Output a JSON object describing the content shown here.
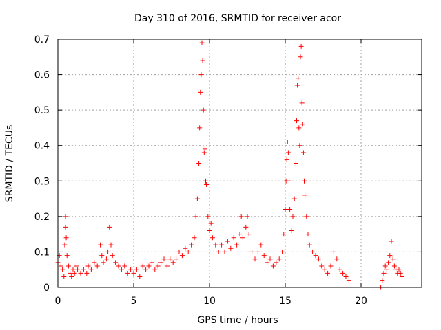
{
  "chart_data": {
    "type": "scatter",
    "title": "Day 310 of 2016, SRMTID for receiver acor",
    "xlabel": "GPS time / hours",
    "ylabel": "SRMTID / TECUs",
    "xlim": [
      0,
      24
    ],
    "ylim": [
      0,
      0.7
    ],
    "x_ticks": [
      "0",
      "5",
      "10",
      "15",
      "20"
    ],
    "y_ticks": [
      "0",
      "0.1",
      "0.2",
      "0.3",
      "0.4",
      "0.5",
      "0.6",
      "0.7"
    ],
    "grid": true,
    "marker": "plus",
    "color": "#ff0000",
    "series": [
      {
        "name": "SRMTID",
        "points": [
          [
            0.0,
            0.07
          ],
          [
            0.1,
            0.09
          ],
          [
            0.2,
            0.06
          ],
          [
            0.3,
            0.05
          ],
          [
            0.4,
            0.03
          ],
          [
            0.45,
            0.12
          ],
          [
            0.5,
            0.17
          ],
          [
            0.5,
            0.2
          ],
          [
            0.55,
            0.14
          ],
          [
            0.6,
            0.09
          ],
          [
            0.7,
            0.06
          ],
          [
            0.8,
            0.04
          ],
          [
            0.9,
            0.03
          ],
          [
            1.0,
            0.05
          ],
          [
            1.1,
            0.04
          ],
          [
            1.2,
            0.06
          ],
          [
            1.3,
            0.05
          ],
          [
            1.5,
            0.04
          ],
          [
            1.7,
            0.05
          ],
          [
            1.9,
            0.04
          ],
          [
            2.0,
            0.06
          ],
          [
            2.2,
            0.05
          ],
          [
            2.4,
            0.07
          ],
          [
            2.6,
            0.06
          ],
          [
            2.8,
            0.12
          ],
          [
            2.9,
            0.09
          ],
          [
            3.0,
            0.07
          ],
          [
            3.2,
            0.08
          ],
          [
            3.3,
            0.1
          ],
          [
            3.4,
            0.17
          ],
          [
            3.5,
            0.12
          ],
          [
            3.6,
            0.09
          ],
          [
            3.8,
            0.07
          ],
          [
            4.0,
            0.06
          ],
          [
            4.2,
            0.05
          ],
          [
            4.4,
            0.06
          ],
          [
            4.6,
            0.04
          ],
          [
            4.8,
            0.05
          ],
          [
            5.0,
            0.04
          ],
          [
            5.2,
            0.05
          ],
          [
            5.4,
            0.03
          ],
          [
            5.6,
            0.06
          ],
          [
            5.8,
            0.05
          ],
          [
            6.0,
            0.06
          ],
          [
            6.2,
            0.07
          ],
          [
            6.4,
            0.05
          ],
          [
            6.6,
            0.06
          ],
          [
            6.8,
            0.07
          ],
          [
            7.0,
            0.08
          ],
          [
            7.2,
            0.06
          ],
          [
            7.4,
            0.08
          ],
          [
            7.6,
            0.07
          ],
          [
            7.8,
            0.08
          ],
          [
            8.0,
            0.1
          ],
          [
            8.2,
            0.09
          ],
          [
            8.4,
            0.11
          ],
          [
            8.6,
            0.1
          ],
          [
            8.8,
            0.12
          ],
          [
            9.0,
            0.14
          ],
          [
            9.1,
            0.2
          ],
          [
            9.2,
            0.25
          ],
          [
            9.3,
            0.35
          ],
          [
            9.35,
            0.45
          ],
          [
            9.4,
            0.55
          ],
          [
            9.45,
            0.6
          ],
          [
            9.5,
            0.69
          ],
          [
            9.55,
            0.64
          ],
          [
            9.6,
            0.5
          ],
          [
            9.65,
            0.38
          ],
          [
            9.7,
            0.39
          ],
          [
            9.75,
            0.3
          ],
          [
            9.8,
            0.29
          ],
          [
            9.9,
            0.2
          ],
          [
            10.0,
            0.16
          ],
          [
            10.1,
            0.18
          ],
          [
            10.2,
            0.14
          ],
          [
            10.4,
            0.12
          ],
          [
            10.6,
            0.1
          ],
          [
            10.8,
            0.12
          ],
          [
            11.0,
            0.1
          ],
          [
            11.2,
            0.13
          ],
          [
            11.4,
            0.11
          ],
          [
            11.6,
            0.14
          ],
          [
            11.8,
            0.12
          ],
          [
            12.0,
            0.15
          ],
          [
            12.1,
            0.2
          ],
          [
            12.2,
            0.14
          ],
          [
            12.4,
            0.17
          ],
          [
            12.5,
            0.2
          ],
          [
            12.6,
            0.15
          ],
          [
            12.8,
            0.1
          ],
          [
            13.0,
            0.08
          ],
          [
            13.2,
            0.1
          ],
          [
            13.4,
            0.12
          ],
          [
            13.6,
            0.09
          ],
          [
            13.8,
            0.07
          ],
          [
            14.0,
            0.08
          ],
          [
            14.2,
            0.06
          ],
          [
            14.4,
            0.07
          ],
          [
            14.6,
            0.08
          ],
          [
            14.8,
            0.1
          ],
          [
            14.9,
            0.15
          ],
          [
            15.0,
            0.22
          ],
          [
            15.05,
            0.3
          ],
          [
            15.1,
            0.36
          ],
          [
            15.15,
            0.41
          ],
          [
            15.2,
            0.38
          ],
          [
            15.25,
            0.3
          ],
          [
            15.3,
            0.22
          ],
          [
            15.4,
            0.16
          ],
          [
            15.5,
            0.2
          ],
          [
            15.6,
            0.25
          ],
          [
            15.7,
            0.35
          ],
          [
            15.75,
            0.47
          ],
          [
            15.8,
            0.57
          ],
          [
            15.85,
            0.59
          ],
          [
            15.9,
            0.45
          ],
          [
            15.95,
            0.4
          ],
          [
            16.0,
            0.65
          ],
          [
            16.05,
            0.68
          ],
          [
            16.1,
            0.52
          ],
          [
            16.15,
            0.46
          ],
          [
            16.2,
            0.38
          ],
          [
            16.25,
            0.3
          ],
          [
            16.3,
            0.26
          ],
          [
            16.4,
            0.2
          ],
          [
            16.5,
            0.15
          ],
          [
            16.6,
            0.12
          ],
          [
            16.8,
            0.1
          ],
          [
            17.0,
            0.09
          ],
          [
            17.2,
            0.08
          ],
          [
            17.4,
            0.06
          ],
          [
            17.6,
            0.05
          ],
          [
            17.8,
            0.04
          ],
          [
            18.0,
            0.06
          ],
          [
            18.2,
            0.1
          ],
          [
            18.4,
            0.08
          ],
          [
            18.6,
            0.05
          ],
          [
            18.8,
            0.04
          ],
          [
            19.0,
            0.03
          ],
          [
            19.2,
            0.02
          ],
          [
            21.3,
            0.0
          ],
          [
            21.4,
            0.02
          ],
          [
            21.5,
            0.04
          ],
          [
            21.6,
            0.06
          ],
          [
            21.7,
            0.05
          ],
          [
            21.8,
            0.07
          ],
          [
            21.9,
            0.09
          ],
          [
            22.0,
            0.13
          ],
          [
            22.1,
            0.08
          ],
          [
            22.2,
            0.06
          ],
          [
            22.3,
            0.05
          ],
          [
            22.4,
            0.04
          ],
          [
            22.5,
            0.05
          ],
          [
            22.6,
            0.04
          ],
          [
            22.7,
            0.03
          ]
        ]
      }
    ]
  }
}
